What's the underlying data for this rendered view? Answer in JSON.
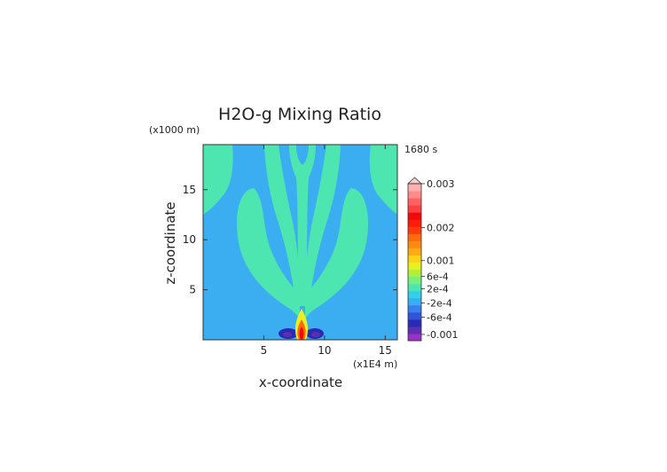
{
  "chart_data": {
    "type": "heatmap",
    "title": "H2O-g Mixing Ratio",
    "xlabel": "x-coordinate",
    "ylabel": "z-coordinate",
    "x_unit": "(x1E4 m)",
    "y_unit": "(x1000 m)",
    "time_label": "1680 s",
    "xlim": [
      0,
      16
    ],
    "ylim": [
      0,
      19.5
    ],
    "x_ticks": [
      "5",
      "10",
      "15"
    ],
    "y_ticks": [
      "5",
      "10",
      "15"
    ],
    "colorbar": {
      "labels": [
        "0.003",
        "0.002",
        "0.001",
        "6e-4",
        "2e-4",
        "-2e-4",
        "-6e-4",
        "-0.001"
      ],
      "colors": [
        "#9b30c8",
        "#5a2fb0",
        "#2a2ab8",
        "#2f55d8",
        "#3a7ef0",
        "#35b0f2",
        "#33cfe6",
        "#4de6b0",
        "#78f07a",
        "#b0f03c",
        "#e8f020",
        "#ffd21a",
        "#ffaa14",
        "#ff8a12",
        "#ff6a10",
        "#ff3a0c",
        "#ff1a0a",
        "#f00a0a",
        "#ff4040",
        "#ff6060",
        "#ff8a8a",
        "#ffb0b0"
      ]
    },
    "field_levels": {
      "background": "#3aaef0",
      "plume": "#4de6b0",
      "core_outer": "#e8f020",
      "core_mid": "#ff6a10",
      "core_inner": "#f00a0a",
      "negative": "#2a2ab8",
      "negative_inner": "#5a2fb0"
    }
  }
}
